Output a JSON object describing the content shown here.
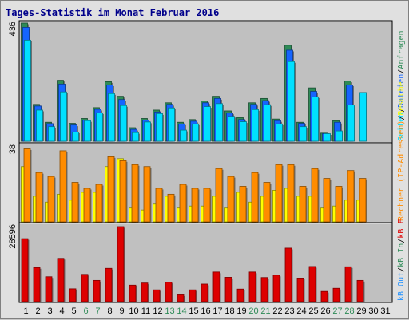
{
  "title": "Tages-Statistik im Monat Februar 2016",
  "colors": {
    "hits": "#2e8b57",
    "files": "#1565ff",
    "pages": "#00e0ff",
    "visits": "#ffff00",
    "sites": "#ff8c00",
    "kbin": "#2e8b57",
    "kbout": "#1e90ff",
    "kbf": "#dd0000",
    "weekend": "#2e8b57",
    "weekday": "#000000",
    "panel": "#c0c0c0",
    "title": "#00008b"
  },
  "legend_top": {
    "hits": "Anfragen",
    "slash1": "/",
    "files": "Dateien",
    "slash2": "/",
    "pages": "Seiten"
  },
  "legend_mid": {
    "visits": "Besuche",
    "slash1": "/",
    "sites": "Rechner (IP-Adressen)"
  },
  "legend_bot": {
    "kbf": "kB F",
    "slash1": "/",
    "kbin": "kB In",
    "slash2": "/",
    "kbout": "kB Out"
  },
  "chart_data": [
    {
      "type": "bar",
      "name": "top",
      "ymax_label": "436",
      "ylim": [
        0,
        436
      ],
      "categories": [
        "1",
        "2",
        "3",
        "4",
        "5",
        "6",
        "7",
        "8",
        "9",
        "10",
        "11",
        "12",
        "13",
        "14",
        "15",
        "16",
        "17",
        "18",
        "19",
        "20",
        "21",
        "22",
        "23",
        "24",
        "25",
        "26",
        "27",
        "28",
        "29",
        "30",
        "31"
      ],
      "weekend": [
        false,
        false,
        false,
        false,
        false,
        true,
        true,
        false,
        false,
        false,
        false,
        false,
        true,
        true,
        false,
        false,
        false,
        false,
        false,
        true,
        true,
        false,
        false,
        false,
        false,
        false,
        true,
        true,
        false,
        false,
        false
      ],
      "series": [
        {
          "key": "hits",
          "values": [
            436,
            136,
            70,
            225,
            66,
            84,
            124,
            220,
            166,
            50,
            84,
            115,
            142,
            70,
            80,
            149,
            166,
            112,
            87,
            142,
            158,
            82,
            354,
            70,
            197,
            30,
            76,
            222,
            0,
            0,
            0
          ]
        },
        {
          "key": "files",
          "values": [
            420,
            130,
            65,
            211,
            60,
            78,
            118,
            208,
            154,
            44,
            78,
            108,
            136,
            64,
            74,
            142,
            158,
            104,
            80,
            136,
            150,
            76,
            336,
            66,
            184,
            28,
            70,
            208,
            0,
            0,
            0
          ]
        },
        {
          "key": "pages",
          "values": [
            373,
            115,
            54,
            182,
            34,
            76,
            105,
            176,
            132,
            32,
            71,
            102,
            123,
            41,
            64,
            128,
            139,
            92,
            72,
            117,
            135,
            64,
            294,
            54,
            164,
            28,
            38,
            134,
            180,
            0,
            0
          ]
        }
      ]
    },
    {
      "type": "bar",
      "name": "middle",
      "ymax_label": "38",
      "ylim": [
        0,
        38
      ],
      "series": [
        {
          "key": "visits",
          "values": [
            28,
            13,
            10,
            14,
            11,
            15,
            15,
            28,
            32,
            7,
            6,
            9,
            13,
            7,
            8,
            8,
            13,
            7,
            15,
            10,
            13,
            16,
            17,
            13,
            13,
            7,
            8,
            11,
            11,
            0,
            0
          ]
        },
        {
          "key": "sites",
          "values": [
            37,
            25,
            23,
            36,
            20,
            17,
            19,
            33,
            31,
            29,
            28,
            17,
            14,
            19,
            17,
            17,
            27,
            23,
            18,
            25,
            20,
            29,
            29,
            18,
            27,
            22,
            18,
            26,
            22,
            0,
            0
          ]
        }
      ]
    },
    {
      "type": "bar",
      "name": "bottom",
      "ymax_label": "28596",
      "ylim": [
        0,
        28596
      ],
      "series": [
        {
          "key": "kbf",
          "values": [
            24000,
            13000,
            9500,
            16500,
            4900,
            10400,
            8100,
            12700,
            28596,
            6300,
            7100,
            4500,
            7400,
            2600,
            4500,
            6700,
            11300,
            9300,
            4800,
            11300,
            9200,
            10100,
            20400,
            9000,
            13400,
            3900,
            5100,
            13300,
            8100,
            0,
            0
          ]
        }
      ]
    }
  ]
}
